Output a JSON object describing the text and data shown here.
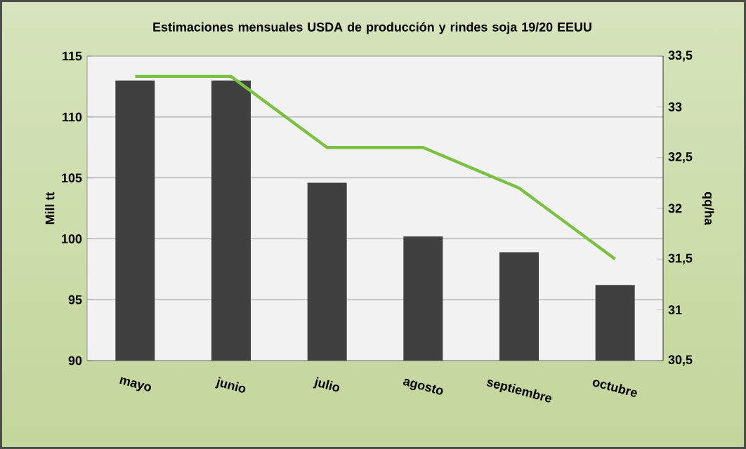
{
  "chart_data": {
    "type": "bar",
    "title": "Estimaciones mensuales USDA de producción y rindes soja 19/20 EEUU",
    "ylabel": "Mill tt",
    "y2label": "qq/ha",
    "categories": [
      "mayo",
      "junio",
      "julio",
      "agosto",
      "septiembre",
      "octubre"
    ],
    "series": [
      {
        "color": "#404040",
        "values": [
          113.0,
          113.0,
          104.6,
          100.2,
          98.9,
          96.2
        ]
      },
      {
        "type": "line",
        "axis": "y2",
        "color": "#7ac143",
        "values": [
          33.3,
          33.3,
          32.6,
          32.6,
          32.2,
          31.5
        ]
      }
    ],
    "ylim": [
      90,
      115
    ],
    "yticks": [
      90,
      95,
      100,
      105,
      110,
      115
    ],
    "y2lim": [
      30.5,
      33.5
    ],
    "y2ticks": [
      {
        "value": 30.5,
        "label": "30,5"
      },
      {
        "value": 31,
        "label": "31"
      },
      {
        "value": 31.5,
        "label": "31,5"
      },
      {
        "value": 32,
        "label": "32"
      },
      {
        "value": 32.5,
        "label": "32,5"
      },
      {
        "value": 33,
        "label": "33"
      },
      {
        "value": 33.5,
        "label": "33,5"
      }
    ],
    "grid": "y",
    "marker": "none",
    "line_style": "solid"
  }
}
